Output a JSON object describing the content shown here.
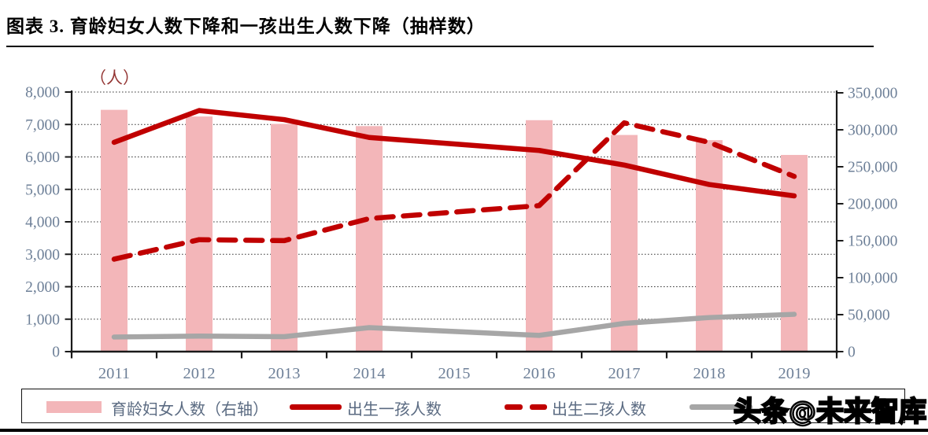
{
  "figure": {
    "title": "图表 3. 育龄妇女人数下降和一孩出生人数下降（抽样数）",
    "watermark": "头条@未来智库"
  },
  "legend": {
    "bar_label": "育龄妇女人数（右轴）",
    "solid_line_label": "出生一孩人数",
    "dashed_line_label": "出生二孩人数",
    "gray_line_label": ""
  },
  "chart_data": {
    "type": "bar",
    "subtype": "combo bar + line, dual axis",
    "categories": [
      "2011",
      "2012",
      "2013",
      "2014",
      "2015",
      "2016",
      "2017",
      "2018",
      "2019"
    ],
    "left_axis": {
      "unit_label": "（人）",
      "min": 0,
      "max": 8000,
      "step": 1000,
      "tick_labels": [
        "0",
        "1,000",
        "2,000",
        "3,000",
        "4,000",
        "5,000",
        "6,000",
        "7,000",
        "8,000"
      ]
    },
    "right_axis": {
      "min": 0,
      "max": 350000,
      "step": 50000,
      "tick_labels": [
        "0",
        "50,000",
        "100,000",
        "150,000",
        "200,000",
        "250,000",
        "300,000",
        "350,000"
      ]
    },
    "series": [
      {
        "name": "育龄妇女人数（右轴）",
        "type": "bar",
        "axis": "right",
        "values": [
          327000,
          318000,
          308000,
          305000,
          null,
          313000,
          293000,
          286000,
          266000
        ]
      },
      {
        "name": "出生一孩人数",
        "type": "line",
        "line_style": "solid",
        "axis": "left",
        "values": [
          6450,
          7430,
          7150,
          6600,
          6400,
          6200,
          5750,
          5150,
          4800
        ]
      },
      {
        "name": "出生二孩人数",
        "type": "line",
        "line_style": "dashed",
        "axis": "left",
        "values": [
          2850,
          3450,
          3420,
          4100,
          4300,
          4500,
          7050,
          6450,
          5400
        ]
      },
      {
        "name": "",
        "label_obscured_by_watermark": true,
        "type": "line",
        "line_style": "solid",
        "axis": "left",
        "values": [
          450,
          480,
          460,
          740,
          620,
          500,
          870,
          1050,
          1150
        ]
      }
    ],
    "grid": "horizontal dotted gridlines at left-axis ticks",
    "legend_position": "bottom",
    "colors": {
      "bar_fill": "#F3B6B9",
      "line_red": "#C00000",
      "line_gray": "#A6A6A6",
      "axis_text": "#6E8098",
      "unit_label_text": "#943634",
      "axis_line": "#1a1a1a"
    }
  }
}
